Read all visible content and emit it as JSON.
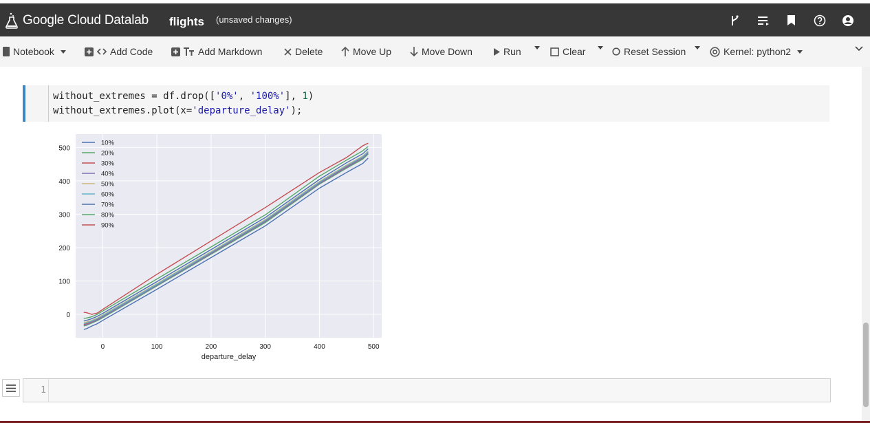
{
  "header": {
    "brand": "Google Cloud Datalab",
    "notebook_name": "flights",
    "status": "(unsaved changes)",
    "icons": [
      "branch-icon",
      "toc-icon",
      "bookmark-icon",
      "help-icon",
      "account-icon"
    ]
  },
  "toolbar": {
    "notebook": "Notebook",
    "add_code": "Add Code",
    "add_markdown": "Add Markdown",
    "delete": "Delete",
    "move_up": "Move Up",
    "move_down": "Move Down",
    "run": "Run",
    "clear": "Clear",
    "reset_session": "Reset Session",
    "kernel": "Kernel: python2"
  },
  "cell": {
    "line1_a": "without_extremes = df.drop([",
    "line1_s1": "'0%'",
    "line1_b": ", ",
    "line1_s2": "'100%'",
    "line1_c": "], ",
    "line1_n": "1",
    "line1_d": ")",
    "line2_a": "without_extremes.plot(x=",
    "line2_s": "'departure_delay'",
    "line2_b": ");"
  },
  "empty_cell": {
    "line_number": "1"
  },
  "chart_data": {
    "type": "line",
    "xlabel": "departure_delay",
    "ylabel": "",
    "xlim": [
      -50,
      515
    ],
    "ylim": [
      -70,
      540
    ],
    "grid": true,
    "legend_position": "top-left",
    "x_ticks": [
      0,
      100,
      200,
      300,
      400,
      500
    ],
    "y_ticks": [
      0,
      100,
      200,
      300,
      400,
      500
    ],
    "x": [
      -35,
      -30,
      -20,
      -10,
      0,
      100,
      200,
      300,
      400,
      450,
      480,
      490
    ],
    "series": [
      {
        "name": "10%",
        "color": "#4c72b0",
        "values": [
          -45,
          -43,
          -35,
          -28,
          -18,
          75,
          170,
          265,
          378,
          425,
          452,
          468
        ]
      },
      {
        "name": "20%",
        "color": "#55a868",
        "values": [
          -35,
          -33,
          -26,
          -19,
          -10,
          85,
          180,
          275,
          390,
          438,
          465,
          480
        ]
      },
      {
        "name": "30%",
        "color": "#c44e52",
        "values": [
          -30,
          -28,
          -22,
          -15,
          -6,
          89,
          184,
          280,
          395,
          443,
          470,
          485
        ]
      },
      {
        "name": "40%",
        "color": "#8172b2",
        "values": [
          -33,
          -31,
          -24,
          -17,
          -8,
          87,
          182,
          278,
          392,
          440,
          468,
          483
        ]
      },
      {
        "name": "50%",
        "color": "#ccb974",
        "values": [
          -25,
          -23,
          -18,
          -11,
          -2,
          92,
          188,
          284,
          398,
          447,
          474,
          489
        ]
      },
      {
        "name": "60%",
        "color": "#64b5cd",
        "values": [
          -28,
          -26,
          -20,
          -13,
          -4,
          90,
          186,
          282,
          396,
          445,
          472,
          487
        ]
      },
      {
        "name": "70%",
        "color": "#4c72b0",
        "values": [
          -20,
          -18,
          -13,
          -6,
          3,
          98,
          194,
          290,
          404,
          454,
          481,
          496
        ]
      },
      {
        "name": "80%",
        "color": "#55a868",
        "values": [
          -12,
          -11,
          -7,
          0,
          10,
          106,
          202,
          298,
          414,
          462,
          490,
          503
        ]
      },
      {
        "name": "90%",
        "color": "#c44e52",
        "values": [
          6,
          5,
          0,
          4,
          15,
          120,
          220,
          320,
          425,
          470,
          505,
          513
        ]
      }
    ]
  }
}
